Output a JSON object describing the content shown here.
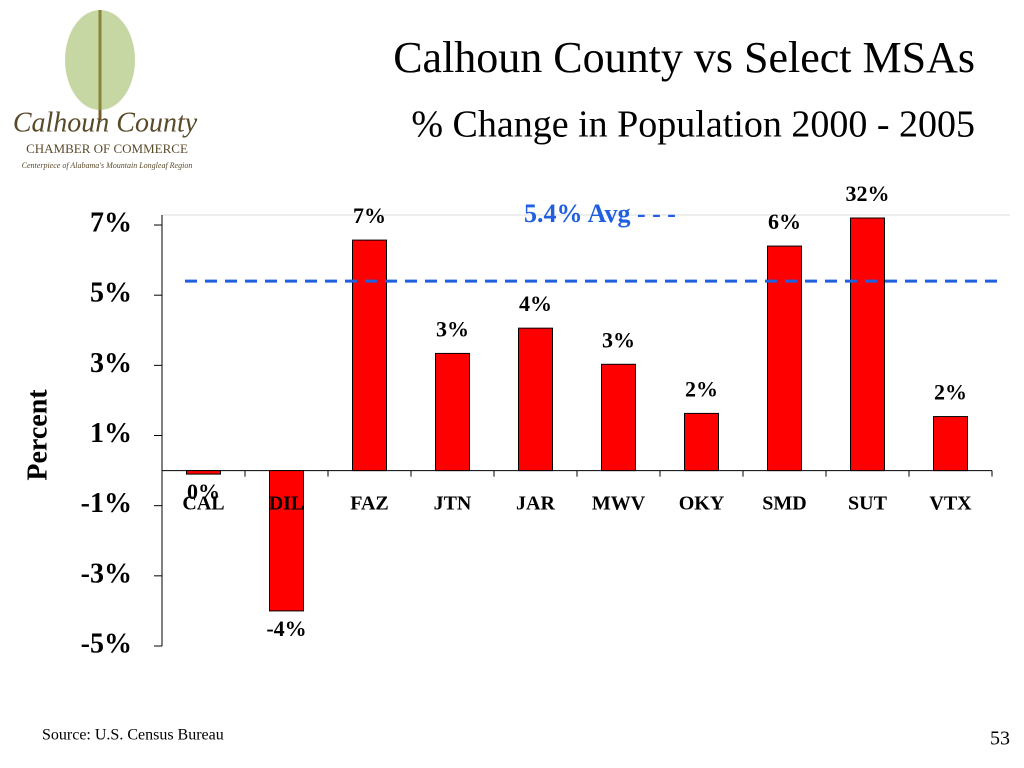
{
  "logo": {
    "name": "Calhoun County",
    "org": "CHAMBER OF COMMERCE",
    "tagline": "Centerpiece of Alabama's Mountain Longleaf Region"
  },
  "chart_data": {
    "type": "bar",
    "title": "Calhoun County vs Select MSAs",
    "subtitle": "% Change in Population 2000 - 2005",
    "y_label": "Percent",
    "categories": [
      "CAL",
      "DIL",
      "FAZ",
      "JTN",
      "JAR",
      "MWV",
      "OKY",
      "SMD",
      "SUT",
      "VTX"
    ],
    "values": [
      -0.1,
      -4.0,
      6.57,
      3.34,
      4.06,
      3.03,
      1.63,
      6.4,
      32,
      1.54
    ],
    "value_labels": [
      "0%",
      "-4%",
      "7%",
      "3%",
      "4%",
      "3%",
      "2%",
      "6%",
      "32%",
      "2%"
    ],
    "color": "#ff0000",
    "ylim": [
      -5,
      7.2
    ],
    "yticks": [
      {
        "value": -5,
        "label": "-5%"
      },
      {
        "value": -3,
        "label": "-3%"
      },
      {
        "value": -1,
        "label": "-1%"
      },
      {
        "value": 1,
        "label": "1%"
      },
      {
        "value": 3,
        "label": "3%"
      },
      {
        "value": 5,
        "label": "5%"
      },
      {
        "value": 7,
        "label": "7%"
      }
    ],
    "average": {
      "value": 5.4,
      "label": "5.4% Avg - - -",
      "color": "#1f5fe0"
    },
    "source": "Source: U.S. Census Bureau",
    "page_number": "53"
  }
}
